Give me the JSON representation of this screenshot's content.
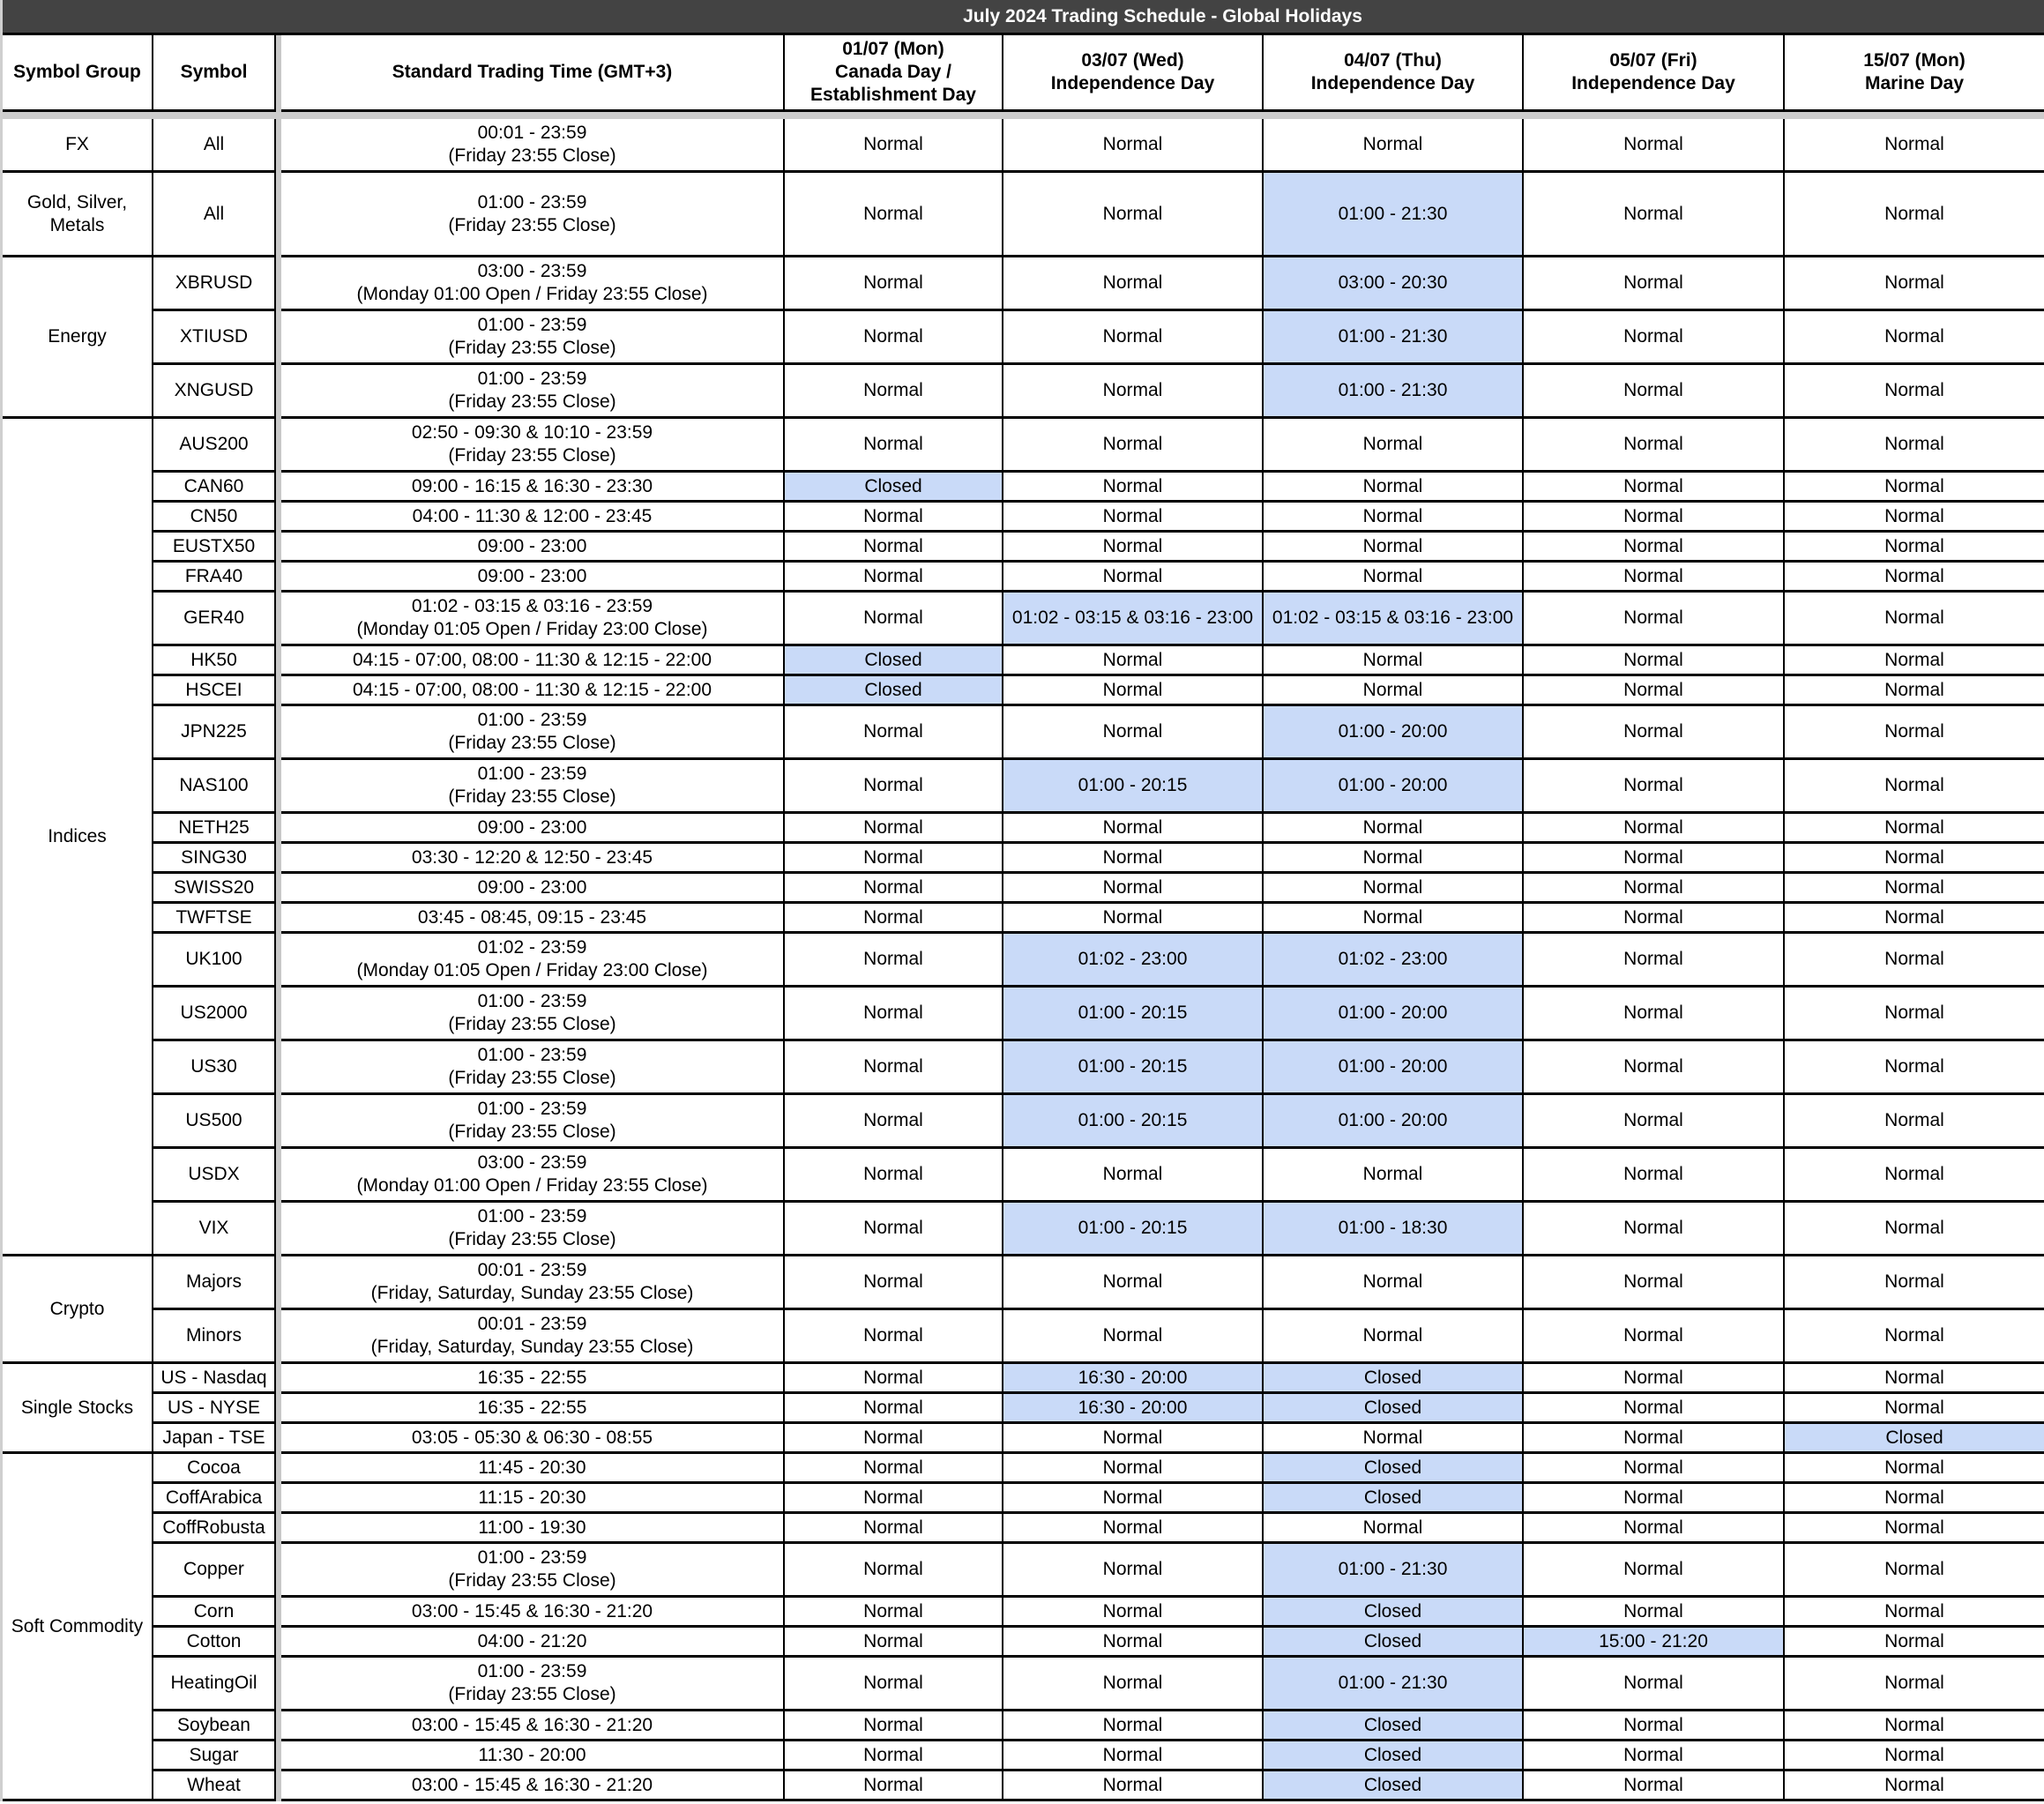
{
  "title": "July 2024 Trading Schedule - Global Holidays",
  "highlight_color": "#c9daf8",
  "headers": {
    "group": "Symbol Group",
    "symbol": "Symbol",
    "standard": "Standard Trading Time (GMT+3)",
    "days": [
      "01/07 (Mon)\nCanada Day /\nEstablishment Day",
      "03/07 (Wed)\nIndependence Day",
      "04/07 (Thu)\nIndependence Day",
      "05/07 (Fri)\nIndependence Day",
      "15/07 (Mon)\nMarine Day"
    ]
  },
  "groups": [
    {
      "name": "FX",
      "rows": [
        {
          "symbol": "All",
          "time": "00:01 - 23:59\n(Friday 23:55 Close)",
          "days": [
            "Normal",
            "Normal",
            "Normal",
            "Normal",
            "Normal"
          ]
        }
      ]
    },
    {
      "name": "Gold, Silver,\nMetals",
      "rows": [
        {
          "symbol": "All",
          "time": "01:00 - 23:59\n(Friday 23:55 Close)",
          "days": [
            "Normal",
            "Normal",
            "01:00 - 21:30",
            "Normal",
            "Normal"
          ]
        }
      ]
    },
    {
      "name": "Energy",
      "rows": [
        {
          "symbol": "XBRUSD",
          "time": "03:00 - 23:59\n(Monday 01:00 Open / Friday 23:55 Close)",
          "days": [
            "Normal",
            "Normal",
            "03:00 - 20:30",
            "Normal",
            "Normal"
          ]
        },
        {
          "symbol": "XTIUSD",
          "time": "01:00 - 23:59\n(Friday 23:55 Close)",
          "days": [
            "Normal",
            "Normal",
            "01:00 - 21:30",
            "Normal",
            "Normal"
          ]
        },
        {
          "symbol": "XNGUSD",
          "time": "01:00 - 23:59\n(Friday 23:55 Close)",
          "days": [
            "Normal",
            "Normal",
            "01:00 - 21:30",
            "Normal",
            "Normal"
          ]
        }
      ]
    },
    {
      "name": "Indices",
      "rows": [
        {
          "symbol": "AUS200",
          "time": "02:50 - 09:30 & 10:10 - 23:59\n(Friday 23:55 Close)",
          "days": [
            "Normal",
            "Normal",
            "Normal",
            "Normal",
            "Normal"
          ]
        },
        {
          "symbol": "CAN60",
          "time": "09:00 - 16:15 & 16:30 - 23:30",
          "days": [
            "Closed",
            "Normal",
            "Normal",
            "Normal",
            "Normal"
          ]
        },
        {
          "symbol": "CN50",
          "time": "04:00 - 11:30 & 12:00 - 23:45",
          "days": [
            "Normal",
            "Normal",
            "Normal",
            "Normal",
            "Normal"
          ]
        },
        {
          "symbol": "EUSTX50",
          "time": "09:00 - 23:00",
          "days": [
            "Normal",
            "Normal",
            "Normal",
            "Normal",
            "Normal"
          ]
        },
        {
          "symbol": "FRA40",
          "time": "09:00 - 23:00",
          "days": [
            "Normal",
            "Normal",
            "Normal",
            "Normal",
            "Normal"
          ]
        },
        {
          "symbol": "GER40",
          "time": "01:02 - 03:15 & 03:16 - 23:59\n(Monday 01:05 Open / Friday 23:00 Close)",
          "days": [
            "Normal",
            "01:02 - 03:15 & 03:16 - 23:00",
            "01:02 - 03:15 & 03:16 - 23:00",
            "Normal",
            "Normal"
          ]
        },
        {
          "symbol": "HK50",
          "time": "04:15 - 07:00, 08:00 - 11:30 & 12:15 - 22:00",
          "days": [
            "Closed",
            "Normal",
            "Normal",
            "Normal",
            "Normal"
          ]
        },
        {
          "symbol": "HSCEI",
          "time": "04:15 - 07:00, 08:00 - 11:30 & 12:15 - 22:00",
          "days": [
            "Closed",
            "Normal",
            "Normal",
            "Normal",
            "Normal"
          ]
        },
        {
          "symbol": "JPN225",
          "time": "01:00 - 23:59\n(Friday 23:55 Close)",
          "days": [
            "Normal",
            "Normal",
            "01:00 - 20:00",
            "Normal",
            "Normal"
          ]
        },
        {
          "symbol": "NAS100",
          "time": "01:00 - 23:59\n(Friday 23:55 Close)",
          "days": [
            "Normal",
            "01:00 - 20:15",
            "01:00 - 20:00",
            "Normal",
            "Normal"
          ]
        },
        {
          "symbol": "NETH25",
          "time": "09:00 - 23:00",
          "days": [
            "Normal",
            "Normal",
            "Normal",
            "Normal",
            "Normal"
          ]
        },
        {
          "symbol": "SING30",
          "time": "03:30 - 12:20 & 12:50 - 23:45",
          "days": [
            "Normal",
            "Normal",
            "Normal",
            "Normal",
            "Normal"
          ]
        },
        {
          "symbol": "SWISS20",
          "time": "09:00 - 23:00",
          "days": [
            "Normal",
            "Normal",
            "Normal",
            "Normal",
            "Normal"
          ]
        },
        {
          "symbol": "TWFTSE",
          "time": "03:45 - 08:45, 09:15 - 23:45",
          "days": [
            "Normal",
            "Normal",
            "Normal",
            "Normal",
            "Normal"
          ]
        },
        {
          "symbol": "UK100",
          "time": "01:02 - 23:59\n(Monday 01:05 Open / Friday 23:00 Close)",
          "days": [
            "Normal",
            "01:02 - 23:00",
            "01:02 - 23:00",
            "Normal",
            "Normal"
          ]
        },
        {
          "symbol": "US2000",
          "time": "01:00 - 23:59\n(Friday 23:55 Close)",
          "days": [
            "Normal",
            "01:00 - 20:15",
            "01:00 - 20:00",
            "Normal",
            "Normal"
          ]
        },
        {
          "symbol": "US30",
          "time": "01:00 - 23:59\n(Friday 23:55 Close)",
          "days": [
            "Normal",
            "01:00 - 20:15",
            "01:00 - 20:00",
            "Normal",
            "Normal"
          ]
        },
        {
          "symbol": "US500",
          "time": "01:00 - 23:59\n(Friday 23:55 Close)",
          "days": [
            "Normal",
            "01:00 - 20:15",
            "01:00 - 20:00",
            "Normal",
            "Normal"
          ]
        },
        {
          "symbol": "USDX",
          "time": "03:00 - 23:59\n(Monday 01:00 Open / Friday 23:55 Close)",
          "days": [
            "Normal",
            "Normal",
            "Normal",
            "Normal",
            "Normal"
          ]
        },
        {
          "symbol": "VIX",
          "time": "01:00 - 23:59\n(Friday 23:55 Close)",
          "days": [
            "Normal",
            "01:00 - 20:15",
            "01:00 - 18:30",
            "Normal",
            "Normal"
          ]
        }
      ]
    },
    {
      "name": "Crypto",
      "rows": [
        {
          "symbol": "Majors",
          "time": "00:01 - 23:59\n(Friday, Saturday, Sunday 23:55 Close)",
          "days": [
            "Normal",
            "Normal",
            "Normal",
            "Normal",
            "Normal"
          ]
        },
        {
          "symbol": "Minors",
          "time": "00:01 - 23:59\n(Friday, Saturday, Sunday 23:55 Close)",
          "days": [
            "Normal",
            "Normal",
            "Normal",
            "Normal",
            "Normal"
          ]
        }
      ]
    },
    {
      "name": "Single Stocks",
      "rows": [
        {
          "symbol": "US - Nasdaq",
          "time": "16:35 - 22:55",
          "days": [
            "Normal",
            "16:30 - 20:00",
            "Closed",
            "Normal",
            "Normal"
          ]
        },
        {
          "symbol": "US - NYSE",
          "time": "16:35 - 22:55",
          "days": [
            "Normal",
            "16:30 - 20:00",
            "Closed",
            "Normal",
            "Normal"
          ]
        },
        {
          "symbol": "Japan - TSE",
          "time": "03:05 - 05:30 & 06:30 - 08:55",
          "days": [
            "Normal",
            "Normal",
            "Normal",
            "Normal",
            "Closed"
          ]
        }
      ]
    },
    {
      "name": "Soft Commodity",
      "rows": [
        {
          "symbol": "Cocoa",
          "time": "11:45 - 20:30",
          "days": [
            "Normal",
            "Normal",
            "Closed",
            "Normal",
            "Normal"
          ]
        },
        {
          "symbol": "CoffArabica",
          "time": "11:15 - 20:30",
          "days": [
            "Normal",
            "Normal",
            "Closed",
            "Normal",
            "Normal"
          ]
        },
        {
          "symbol": "CoffRobusta",
          "time": "11:00 - 19:30",
          "days": [
            "Normal",
            "Normal",
            "Normal",
            "Normal",
            "Normal"
          ]
        },
        {
          "symbol": "Copper",
          "time": "01:00 - 23:59\n(Friday 23:55 Close)",
          "days": [
            "Normal",
            "Normal",
            "01:00 - 21:30",
            "Normal",
            "Normal"
          ]
        },
        {
          "symbol": "Corn",
          "time": "03:00 - 15:45 & 16:30 - 21:20",
          "days": [
            "Normal",
            "Normal",
            "Closed",
            "Normal",
            "Normal"
          ]
        },
        {
          "symbol": "Cotton",
          "time": "04:00 - 21:20",
          "days": [
            "Normal",
            "Normal",
            "Closed",
            "15:00 - 21:20",
            "Normal"
          ]
        },
        {
          "symbol": "HeatingOil",
          "time": "01:00 - 23:59\n(Friday 23:55 Close)",
          "days": [
            "Normal",
            "Normal",
            "01:00 - 21:30",
            "Normal",
            "Normal"
          ]
        },
        {
          "symbol": "Soybean",
          "time": "03:00 - 15:45 & 16:30 - 21:20",
          "days": [
            "Normal",
            "Normal",
            "Closed",
            "Normal",
            "Normal"
          ]
        },
        {
          "symbol": "Sugar",
          "time": "11:30 - 20:00",
          "days": [
            "Normal",
            "Normal",
            "Closed",
            "Normal",
            "Normal"
          ]
        },
        {
          "symbol": "Wheat",
          "time": "03:00 - 15:45 & 16:30 - 21:20",
          "days": [
            "Normal",
            "Normal",
            "Closed",
            "Normal",
            "Normal"
          ]
        }
      ]
    }
  ]
}
